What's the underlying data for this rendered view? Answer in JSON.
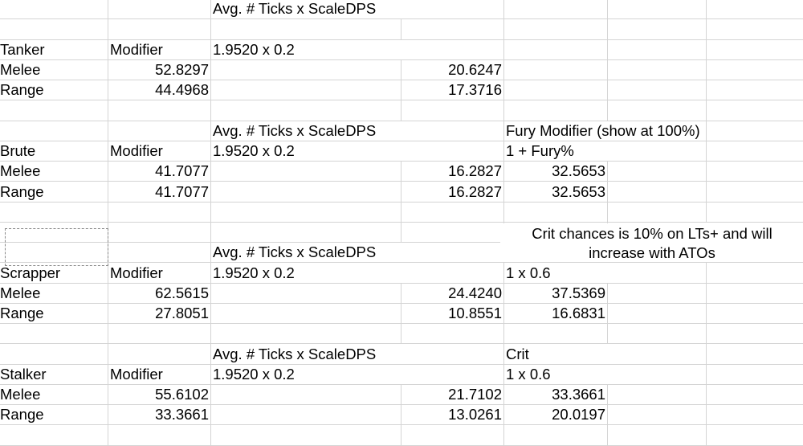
{
  "spreadsheet": {
    "sections": [
      {
        "name": "Tanker",
        "formula_header": "Avg. # Ticks x ScaleDPS",
        "extra_header": "",
        "modifier_label": "Modifier",
        "formula_expr": "1.9520 x 0.2",
        "extra_expr": "",
        "rows": [
          {
            "label": "Melee",
            "modifier": "52.8297",
            "dps": "20.6247",
            "extra": ""
          },
          {
            "label": "Range",
            "modifier": "44.4968",
            "dps": "17.3716",
            "extra": ""
          }
        ]
      },
      {
        "name": "Brute",
        "formula_header": "Avg. # Ticks x ScaleDPS",
        "extra_header": "Fury Modifier (show at 100%)",
        "modifier_label": "Modifier",
        "formula_expr": "1.9520 x 0.2",
        "extra_expr": "1 + Fury%",
        "rows": [
          {
            "label": "Melee",
            "modifier": "41.7077",
            "dps": "16.2827",
            "extra": "32.5653"
          },
          {
            "label": "Range",
            "modifier": "41.7077",
            "dps": "16.2827",
            "extra": "32.5653"
          }
        ]
      },
      {
        "name": "Scrapper",
        "formula_header": "Avg. # Ticks x ScaleDPS",
        "extra_header": "Crit",
        "modifier_label": "Modifier",
        "formula_expr": "1.9520 x 0.2",
        "extra_expr": "1 x 0.6",
        "rows": [
          {
            "label": "Melee",
            "modifier": "62.5615",
            "dps": "24.4240",
            "extra": "37.5369"
          },
          {
            "label": "Range",
            "modifier": "27.8051",
            "dps": "10.8551",
            "extra": "16.6831"
          }
        ]
      },
      {
        "name": "Stalker",
        "formula_header": "Avg. # Ticks x ScaleDPS",
        "extra_header": "Crit",
        "modifier_label": "Modifier",
        "formula_expr": "1.9520 x 0.2",
        "extra_expr": "1 x 0.6",
        "rows": [
          {
            "label": "Melee",
            "modifier": "55.6102",
            "dps": "21.7102",
            "extra": "33.3661"
          },
          {
            "label": "Range",
            "modifier": "33.3661",
            "dps": "13.0261",
            "extra": "20.0197"
          }
        ]
      }
    ],
    "note": "Crit chances is 10% on LTs+ and will increase with ATOs",
    "colors": {
      "gridline": "#d4d4d4",
      "copy_border": "#8a8a8a",
      "background": "#ffffff"
    }
  }
}
